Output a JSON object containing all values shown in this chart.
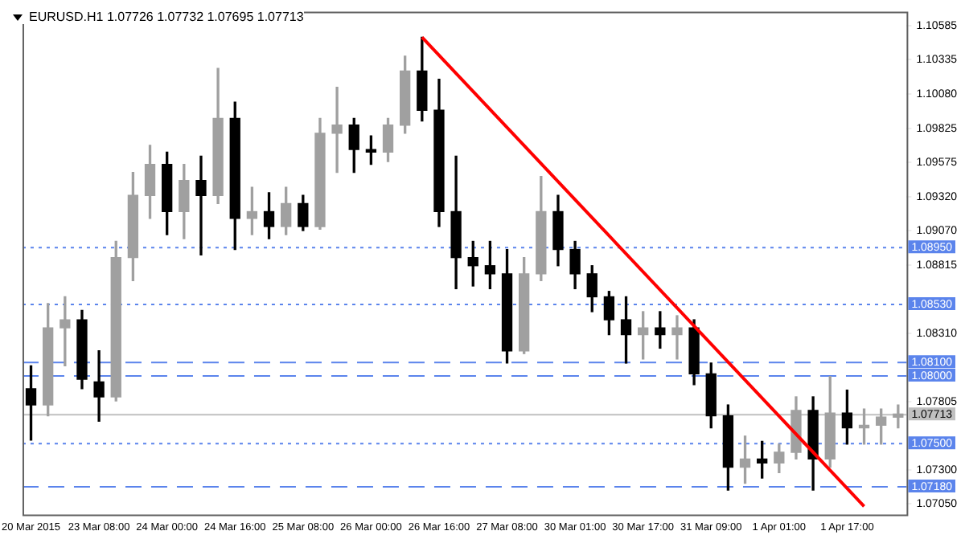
{
  "chart_data": {
    "type": "candlestick",
    "title": "EURUSD.H1 1.07726 1.07732 1.07695 1.07713",
    "categories": [
      "20 Mar 2015",
      null,
      null,
      null,
      "23 Mar 08:00",
      null,
      null,
      null,
      "24 Mar 00:00",
      null,
      null,
      null,
      "24 Mar 16:00",
      null,
      null,
      null,
      "25 Mar 08:00",
      null,
      null,
      null,
      "26 Mar 00:00",
      null,
      null,
      null,
      "26 Mar 16:00",
      null,
      null,
      null,
      "27 Mar 08:00",
      null,
      null,
      null,
      "30 Mar 01:00",
      null,
      null,
      null,
      "30 Mar 17:00",
      null,
      null,
      null,
      "31 Mar 09:00",
      null,
      null,
      null,
      "1 Apr 01:00",
      null,
      null,
      null,
      "1 Apr 17:00",
      null,
      null,
      null
    ],
    "ohlc": [
      [
        1.079,
        1.0807,
        1.0752,
        1.0778
      ],
      [
        1.0778,
        1.0853,
        1.077,
        1.0835
      ],
      [
        1.0835,
        1.0858,
        1.0807,
        1.0841
      ],
      [
        1.0841,
        1.0848,
        1.079,
        1.0797
      ],
      [
        1.0795,
        1.0818,
        1.0766,
        1.0784
      ],
      [
        1.0784,
        1.0899,
        1.0781,
        1.0887
      ],
      [
        1.0887,
        1.095,
        1.087,
        1.0933
      ],
      [
        1.0933,
        1.097,
        1.0916,
        1.0956
      ],
      [
        1.0956,
        1.0965,
        1.0904,
        1.0921
      ],
      [
        1.0921,
        1.0956,
        1.0901,
        1.0944
      ],
      [
        1.0944,
        1.0962,
        1.0889,
        1.0933
      ],
      [
        1.0933,
        1.1027,
        1.0927,
        1.099
      ],
      [
        1.099,
        1.1002,
        1.0893,
        1.0916
      ],
      [
        1.0916,
        1.0939,
        1.0904,
        1.0921
      ],
      [
        1.0921,
        1.0935,
        1.0901,
        1.091
      ],
      [
        1.091,
        1.0939,
        1.0904,
        1.0927
      ],
      [
        1.0927,
        1.0933,
        1.0907,
        1.091
      ],
      [
        1.091,
        1.099,
        1.0908,
        1.0979
      ],
      [
        1.0979,
        1.1013,
        1.095,
        1.0985
      ],
      [
        1.0985,
        1.099,
        1.095,
        1.0967
      ],
      [
        1.0967,
        1.0977,
        1.0956,
        1.0965
      ],
      [
        1.0965,
        1.099,
        1.0958,
        1.0985
      ],
      [
        1.0985,
        1.1036,
        1.0979,
        1.1025
      ],
      [
        1.1025,
        1.105,
        1.0988,
        1.0996
      ],
      [
        1.0996,
        1.1019,
        1.091,
        1.0921
      ],
      [
        1.0921,
        1.0962,
        1.0864,
        1.0887
      ],
      [
        1.0887,
        1.0899,
        1.0866,
        1.0881
      ],
      [
        1.0881,
        1.0899,
        1.0864,
        1.0875
      ],
      [
        1.0875,
        1.0893,
        1.0809,
        1.0818
      ],
      [
        1.0818,
        1.0887,
        1.0816,
        1.0875
      ],
      [
        1.0875,
        1.0947,
        1.087,
        1.0921
      ],
      [
        1.0921,
        1.0933,
        1.0881,
        1.0893
      ],
      [
        1.0893,
        1.0899,
        1.0864,
        1.0875
      ],
      [
        1.0875,
        1.0881,
        1.0847,
        1.0858
      ],
      [
        1.0858,
        1.0862,
        1.083,
        1.0841
      ],
      [
        1.0841,
        1.0858,
        1.0809,
        1.083
      ],
      [
        1.083,
        1.0847,
        1.0812,
        1.0835
      ],
      [
        1.0835,
        1.0847,
        1.082,
        1.083
      ],
      [
        1.083,
        1.0844,
        1.0812,
        1.0835
      ],
      [
        1.0835,
        1.0841,
        1.0793,
        1.0801
      ],
      [
        1.0801,
        1.0809,
        1.0761,
        1.077
      ],
      [
        1.077,
        1.0778,
        1.0715,
        1.0732
      ],
      [
        1.0732,
        1.0755,
        1.072,
        1.0738
      ],
      [
        1.0738,
        1.0751,
        1.0724,
        1.0735
      ],
      [
        1.0735,
        1.0749,
        1.0728,
        1.0743
      ],
      [
        1.0743,
        1.0784,
        1.0738,
        1.0774
      ],
      [
        1.0774,
        1.0784,
        1.0715,
        1.0738
      ],
      [
        1.0738,
        1.0799,
        1.0732,
        1.0772
      ],
      [
        1.0772,
        1.0789,
        1.0749,
        1.0761
      ],
      [
        1.0761,
        1.0775,
        1.0749,
        1.0763
      ],
      [
        1.0763,
        1.0775,
        1.0749,
        1.0769
      ],
      [
        1.0769,
        1.0778,
        1.0761,
        1.07713
      ]
    ],
    "colors": [
      "#000000",
      "#a0a0a0",
      "#a0a0a0",
      "#000000",
      "#000000",
      "#a0a0a0",
      "#a0a0a0",
      "#a0a0a0",
      "#000000",
      "#a0a0a0",
      "#000000",
      "#a0a0a0",
      "#000000",
      "#a0a0a0",
      "#000000",
      "#a0a0a0",
      "#000000",
      "#a0a0a0",
      "#a0a0a0",
      "#000000",
      "#000000",
      "#a0a0a0",
      "#a0a0a0",
      "#000000",
      "#000000",
      "#000000",
      "#000000",
      "#000000",
      "#000000",
      "#a0a0a0",
      "#a0a0a0",
      "#000000",
      "#000000",
      "#000000",
      "#000000",
      "#000000",
      "#a0a0a0",
      "#000000",
      "#a0a0a0",
      "#000000",
      "#000000",
      "#000000",
      "#a0a0a0",
      "#000000",
      "#a0a0a0",
      "#a0a0a0",
      "#000000",
      "#a0a0a0",
      "#000000",
      "#a0a0a0",
      "#a0a0a0",
      "#a0a0a0"
    ],
    "series": [
      {
        "type": "line",
        "color": "#ff0000",
        "values": [
          null,
          null,
          null,
          null,
          null,
          null,
          null,
          null,
          null,
          null,
          null,
          null,
          null,
          null,
          null,
          null,
          null,
          null,
          null,
          null,
          null,
          null,
          null,
          1.105,
          null,
          null,
          null,
          null,
          null,
          null,
          null,
          null,
          null,
          null,
          null,
          null,
          null,
          null,
          null,
          null,
          null,
          null,
          null,
          null,
          null,
          null,
          null,
          null,
          null,
          1.0703,
          null,
          null
        ]
      }
    ],
    "ylim": [
      1.0697,
      1.1069
    ],
    "yticks": [
      {
        "value": 1.10585,
        "label": "1.10585"
      },
      {
        "value": 1.10335,
        "label": "1.10335"
      },
      {
        "value": 1.1008,
        "label": "1.10080"
      },
      {
        "value": 1.09825,
        "label": "1.09825"
      },
      {
        "value": 1.09575,
        "label": "1.09575"
      },
      {
        "value": 1.0932,
        "label": "1.09320"
      },
      {
        "value": 1.0907,
        "label": "1.09070"
      },
      {
        "value": 1.08815,
        "label": "1.08815"
      },
      {
        "value": 1.0831,
        "label": "1.08310"
      },
      {
        "value": 1.07805,
        "label": "1.07805"
      },
      {
        "value": 1.073,
        "label": "1.07300"
      },
      {
        "value": 1.0705,
        "label": "1.07050"
      }
    ],
    "ref_lines": [
      {
        "axis": "y",
        "value": 1.0895,
        "label": "1.08950",
        "color": "#5b84ec",
        "line_style": "dotted"
      },
      {
        "axis": "y",
        "value": 1.0853,
        "label": "1.08530",
        "color": "#5b84ec",
        "line_style": "dotted"
      },
      {
        "axis": "y",
        "value": 1.081,
        "label": "1.08100",
        "color": "#5b84ec",
        "line_style": "dashed"
      },
      {
        "axis": "y",
        "value": 1.08,
        "label": "1.08000",
        "color": "#5b84ec",
        "line_style": "dashed"
      },
      {
        "axis": "y",
        "value": 1.07713,
        "label": "1.07713",
        "color": "#c0c0c0",
        "line_style": "solid"
      },
      {
        "axis": "y",
        "value": 1.075,
        "label": "1.07500",
        "color": "#5b84ec",
        "line_style": "dotted"
      },
      {
        "axis": "y",
        "value": 1.0718,
        "label": "1.07180",
        "color": "#5b84ec",
        "line_style": "dashed"
      }
    ]
  }
}
